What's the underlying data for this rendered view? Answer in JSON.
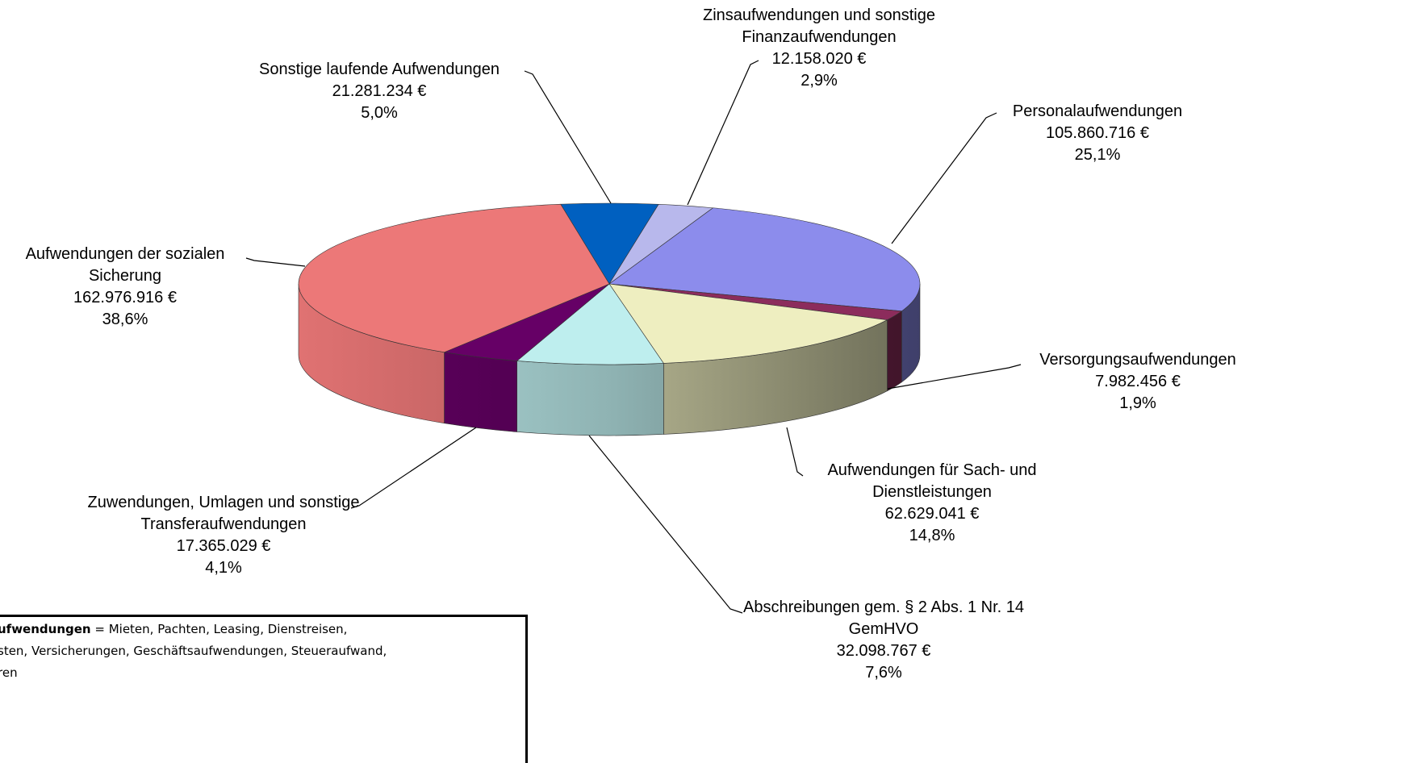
{
  "chart_data": {
    "type": "pie",
    "categories": [
      "Sonstige laufende Aufwendungen",
      "Zinsaufwendungen und sonstige Finanzaufwendungen",
      "Personalaufwendungen",
      "Versorgungsaufwendungen",
      "Aufwendungen für Sach- und Dienstleistungen",
      "Abschreibungen gem. § 2 Abs. 1 Nr. 14 GemHVO",
      "Zuwendungen, Umlagen und sonstige Transferaufwendungen",
      "Aufwendungen der sozialen Sicherung"
    ],
    "values": [
      21281234,
      12158020,
      105860716,
      7982456,
      62629041,
      32098767,
      17365029,
      162976916
    ],
    "value_labels": [
      "21.281.234 €",
      "12.158.020 €",
      "105.860.716 €",
      "7.982.456 €",
      "62.629.041 €",
      "32.098.767 €",
      "17.365.029 €",
      "162.976.916 €"
    ],
    "percents": [
      5.0,
      2.9,
      25.1,
      1.9,
      14.8,
      7.6,
      4.1,
      38.6
    ],
    "percent_labels": [
      "5,0%",
      "2,9%",
      "25,1%",
      "1,9%",
      "14,8%",
      "7,6%",
      "4,1%",
      "38,6%"
    ],
    "colors": [
      "#0060c0",
      "#b8b8ec",
      "#8c8cec",
      "#8c2c5c",
      "#eeeec0",
      "#beeeee",
      "#660066",
      "#ec7878"
    ]
  },
  "note_box": {
    "bold": "ufwendungen",
    "lines": [
      " = Mieten, Pachten, Leasing, Dienstreisen,",
      "sten, Versicherungen, Geschäftsaufwendungen, Steueraufwand,",
      "ren"
    ]
  }
}
